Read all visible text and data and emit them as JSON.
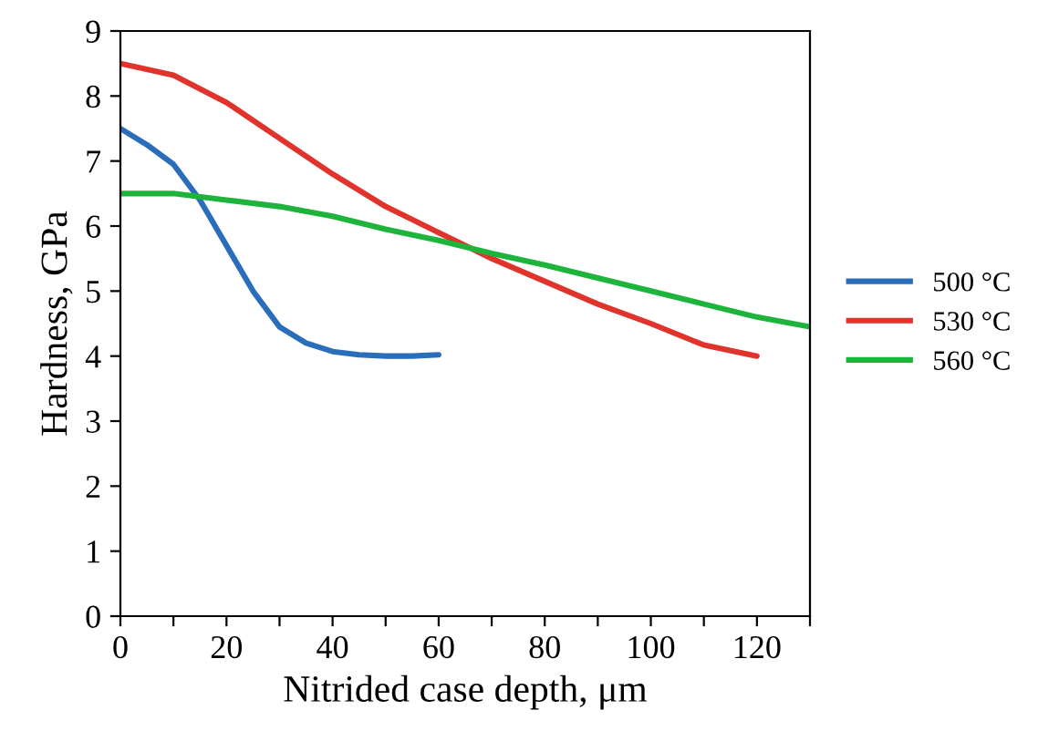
{
  "chart_data": {
    "type": "line",
    "xlabel": "Nitrided case depth, μm",
    "ylabel": "Hardness, GPa",
    "xlim": [
      0,
      130
    ],
    "ylim": [
      0,
      9
    ],
    "xticks": [
      0,
      {
        "value": 10,
        "label": null
      },
      20,
      {
        "value": 30,
        "label": null
      },
      40,
      {
        "value": 50,
        "label": null
      },
      60,
      {
        "value": 70,
        "label": null
      },
      80,
      {
        "value": 90,
        "label": null
      },
      100,
      {
        "value": 110,
        "label": null
      },
      120,
      {
        "value": 130,
        "label": null
      }
    ],
    "yticks": [
      0,
      1,
      2,
      3,
      4,
      5,
      6,
      7,
      8,
      9
    ],
    "grid": false,
    "legend": "right",
    "marker": "none",
    "line_style": "solid",
    "series": [
      {
        "name": "500 °C",
        "color": "#2a6ebb",
        "x": [
          0,
          5,
          10,
          15,
          20,
          25,
          30,
          35,
          40,
          45,
          50,
          55,
          60
        ],
        "values": [
          7.5,
          7.25,
          6.95,
          6.4,
          5.7,
          5.0,
          4.45,
          4.2,
          4.07,
          4.02,
          4.0,
          4.0,
          4.02
        ]
      },
      {
        "name": "530 °C",
        "color": "#e0332b",
        "x": [
          0,
          10,
          20,
          30,
          40,
          50,
          60,
          70,
          80,
          90,
          100,
          110,
          120
        ],
        "values": [
          8.5,
          8.32,
          7.9,
          7.35,
          6.8,
          6.3,
          5.9,
          5.5,
          5.15,
          4.8,
          4.5,
          4.17,
          4.0
        ]
      },
      {
        "name": "560 °C",
        "color": "#1eb33a",
        "x": [
          0,
          10,
          20,
          30,
          40,
          50,
          60,
          70,
          80,
          90,
          100,
          110,
          120,
          130
        ],
        "values": [
          6.5,
          6.5,
          6.4,
          6.3,
          6.15,
          5.95,
          5.78,
          5.58,
          5.4,
          5.2,
          5.0,
          4.8,
          4.6,
          4.45
        ]
      }
    ]
  }
}
